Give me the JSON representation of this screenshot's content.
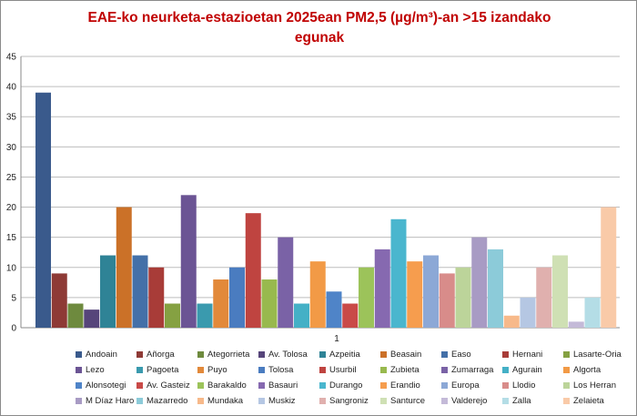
{
  "chart_data": {
    "type": "bar",
    "title_line1": "EAE-ko neurketa-estazioetan 2025ean PM2,5 (µg/m³)-an >15 izandako",
    "title_line2": "egunak",
    "categories": [
      "1"
    ],
    "ylim": [
      0,
      45
    ],
    "yticks": [
      "0",
      "5",
      "10",
      "15",
      "20",
      "25",
      "30",
      "35",
      "40",
      "45"
    ],
    "grid": true,
    "legend_position": "bottom",
    "series": [
      {
        "name": "Andoain",
        "value": 39,
        "color": "#3a5a8c"
      },
      {
        "name": "Añorga",
        "value": 9,
        "color": "#8e3a36"
      },
      {
        "name": "Ategorrieta",
        "value": 4,
        "color": "#6e8a3e"
      },
      {
        "name": "Av. Tolosa",
        "value": 3,
        "color": "#56457a"
      },
      {
        "name": "Azpeitia",
        "value": 12,
        "color": "#2f8396"
      },
      {
        "name": "Beasain",
        "value": 20,
        "color": "#cb7128"
      },
      {
        "name": "Easo",
        "value": 12,
        "color": "#4470a8"
      },
      {
        "name": "Hernani",
        "value": 10,
        "color": "#a83c38"
      },
      {
        "name": "Lasarte-Oria",
        "value": 4,
        "color": "#85a142"
      },
      {
        "name": "Lezo",
        "value": 22,
        "color": "#6b5494"
      },
      {
        "name": "Pagoeta",
        "value": 4,
        "color": "#3a9aae"
      },
      {
        "name": "Puyo",
        "value": 8,
        "color": "#e2893a"
      },
      {
        "name": "Tolosa",
        "value": 10,
        "color": "#4a7cc0"
      },
      {
        "name": "Usurbil",
        "value": 19,
        "color": "#bf4440"
      },
      {
        "name": "Zubieta",
        "value": 8,
        "color": "#98b94e"
      },
      {
        "name": "Zumarraga",
        "value": 15,
        "color": "#7a62a6"
      },
      {
        "name": "Agurain",
        "value": 4,
        "color": "#44b0c6"
      },
      {
        "name": "Algorta",
        "value": 11,
        "color": "#f29a46"
      },
      {
        "name": "Alonsotegi",
        "value": 6,
        "color": "#4f84c8"
      },
      {
        "name": "Av. Gasteiz",
        "value": 4,
        "color": "#c94a48"
      },
      {
        "name": "Barakaldo",
        "value": 10,
        "color": "#9cc35a"
      },
      {
        "name": "Basauri",
        "value": 13,
        "color": "#8669b0"
      },
      {
        "name": "Durango",
        "value": 18,
        "color": "#4ab6ce"
      },
      {
        "name": "Erandio",
        "value": 11,
        "color": "#f69d4e"
      },
      {
        "name": "Europa",
        "value": 12,
        "color": "#8ca8d6"
      },
      {
        "name": "Llodio",
        "value": 9,
        "color": "#d88c8a"
      },
      {
        "name": "Los Herran",
        "value": 10,
        "color": "#bcd49a"
      },
      {
        "name": "M Díaz Haro",
        "value": 15,
        "color": "#a89bc4"
      },
      {
        "name": "Mazarredo",
        "value": 13,
        "color": "#8ccbd9"
      },
      {
        "name": "Mundaka",
        "value": 2,
        "color": "#f7b98a"
      },
      {
        "name": "Muskiz",
        "value": 5,
        "color": "#b5c7e3"
      },
      {
        "name": "Sangroniz",
        "value": 10,
        "color": "#e0b0ae"
      },
      {
        "name": "Santurce",
        "value": 12,
        "color": "#cfe0b4"
      },
      {
        "name": "Valderejo",
        "value": 1,
        "color": "#c4bad8"
      },
      {
        "name": "Zalla",
        "value": 5,
        "color": "#b4dde6"
      },
      {
        "name": "Zelaieta",
        "value": 20,
        "color": "#f9caa8"
      }
    ]
  }
}
